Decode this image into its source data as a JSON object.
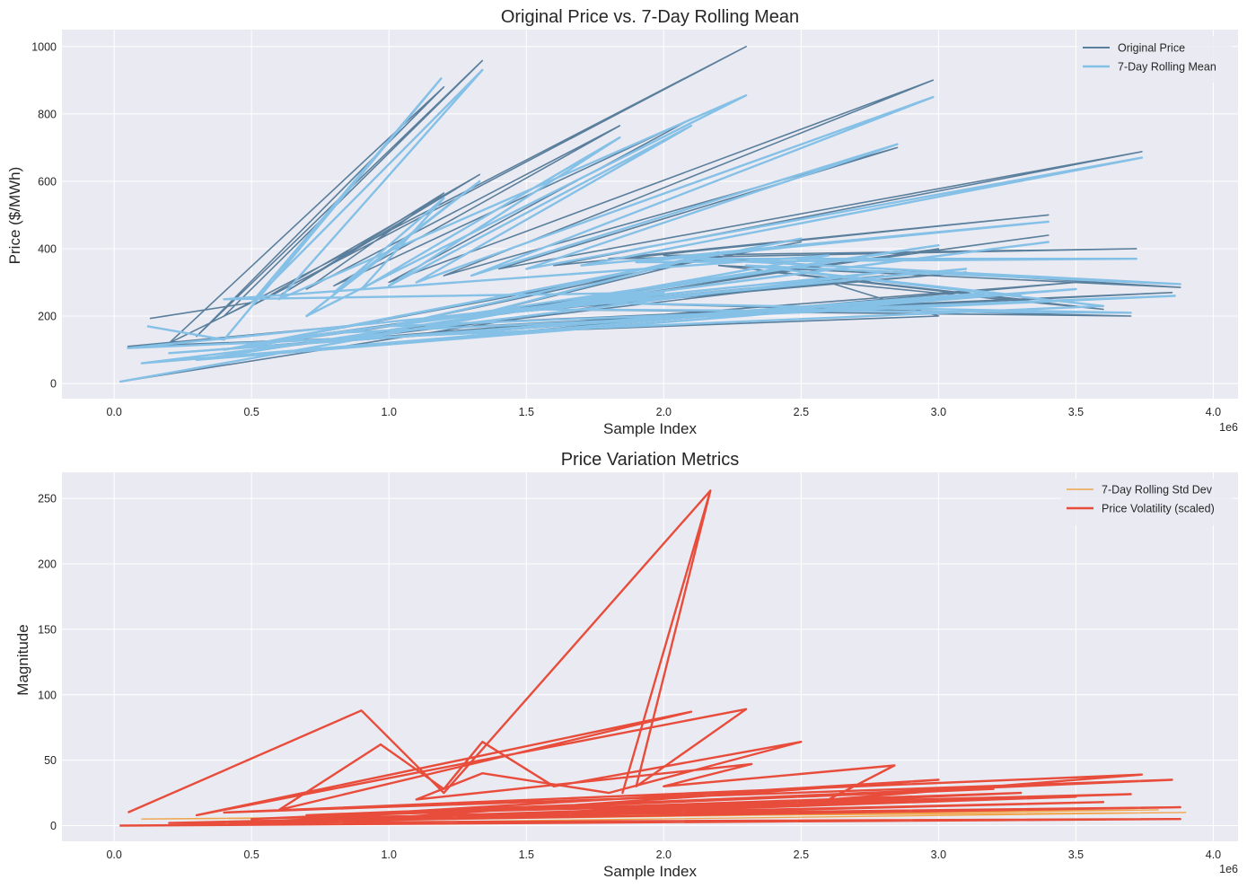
{
  "chart_data": [
    {
      "type": "line",
      "title": "Original Price vs. 7-Day Rolling Mean",
      "xlabel": "Sample Index",
      "ylabel": "Price ($/MWh)",
      "x_offset_label": "1e6",
      "xlim": [
        -0.19,
        4.09
      ],
      "ylim": [
        -45,
        1050
      ],
      "x_ticks": [
        0.0,
        0.5,
        1.0,
        1.5,
        2.0,
        2.5,
        3.0,
        3.5,
        4.0
      ],
      "x_tick_labels": [
        "0.0",
        "0.5",
        "1.0",
        "1.5",
        "2.0",
        "2.5",
        "3.0",
        "3.5",
        "4.0"
      ],
      "y_ticks": [
        0,
        200,
        400,
        600,
        800,
        1000
      ],
      "y_tick_labels": [
        "0",
        "200",
        "400",
        "600",
        "800",
        "1000"
      ],
      "grid": true,
      "legend": "top-right",
      "note": "x values are sample indices in millions (axis offset 1e6); samples are unsorted so the line zig-zags",
      "series": [
        {
          "name": "Original Price",
          "color": "#5a7f9c",
          "points": [
            [
              0.13,
              193
            ],
            [
              0.5,
              240
            ],
            [
              0.2,
              120
            ],
            [
              1.2,
              880
            ],
            [
              0.3,
              140
            ],
            [
              1.34,
              958
            ],
            [
              0.4,
              200
            ],
            [
              2.3,
              1000
            ],
            [
              0.5,
              230
            ],
            [
              1.33,
              620
            ],
            [
              0.6,
              260
            ],
            [
              1.2,
              565
            ],
            [
              0.7,
              280
            ],
            [
              1.84,
              765
            ],
            [
              0.8,
              290
            ],
            [
              2.1,
              785
            ],
            [
              1.0,
              300
            ],
            [
              2.98,
              900
            ],
            [
              1.2,
              320
            ],
            [
              2.85,
              700
            ],
            [
              1.4,
              340
            ],
            [
              3.74,
              688
            ],
            [
              1.6,
              350
            ],
            [
              3.4,
              500
            ],
            [
              1.8,
              370
            ],
            [
              3.72,
              400
            ],
            [
              2.0,
              380
            ],
            [
              3.88,
              285
            ],
            [
              2.2,
              350
            ],
            [
              3.3,
              250
            ],
            [
              2.4,
              330
            ],
            [
              3.6,
              220
            ],
            [
              2.6,
              300
            ],
            [
              3.0,
              200
            ],
            [
              0.05,
              110
            ],
            [
              2.8,
              320
            ],
            [
              0.1,
              60
            ],
            [
              3.2,
              260
            ],
            [
              0.2,
              90
            ],
            [
              3.5,
              300
            ],
            [
              0.3,
              70
            ],
            [
              3.0,
              400
            ],
            [
              0.4,
              100
            ],
            [
              2.5,
              420
            ],
            [
              0.6,
              130
            ],
            [
              3.4,
              440
            ],
            [
              0.8,
              150
            ],
            [
              3.85,
              270
            ],
            [
              1.0,
              170
            ],
            [
              2.2,
              380
            ],
            [
              1.3,
              200
            ],
            [
              3.1,
              330
            ],
            [
              1.5,
              220
            ],
            [
              3.7,
              200
            ],
            [
              1.7,
              240
            ],
            [
              2.0,
              260
            ],
            [
              0.02,
              5
            ]
          ]
        },
        {
          "name": "7-Day Rolling Mean",
          "color": "#85c0e6",
          "points": [
            [
              0.12,
              170
            ],
            [
              0.4,
              130
            ],
            [
              1.19,
              905
            ],
            [
              0.5,
              240
            ],
            [
              1.34,
              930
            ],
            [
              0.6,
              250
            ],
            [
              2.3,
              855
            ],
            [
              0.7,
              200
            ],
            [
              1.33,
              600
            ],
            [
              0.8,
              270
            ],
            [
              1.2,
              550
            ],
            [
              0.9,
              280
            ],
            [
              1.84,
              730
            ],
            [
              1.0,
              290
            ],
            [
              2.1,
              765
            ],
            [
              1.1,
              300
            ],
            [
              2.98,
              850
            ],
            [
              1.3,
              320
            ],
            [
              2.85,
              710
            ],
            [
              1.5,
              340
            ],
            [
              3.74,
              670
            ],
            [
              1.7,
              350
            ],
            [
              3.4,
              480
            ],
            [
              1.9,
              360
            ],
            [
              3.72,
              370
            ],
            [
              2.1,
              370
            ],
            [
              3.88,
              295
            ],
            [
              2.3,
              350
            ],
            [
              3.3,
              260
            ],
            [
              2.5,
              330
            ],
            [
              3.6,
              230
            ],
            [
              0.05,
              105
            ],
            [
              2.8,
              330
            ],
            [
              0.1,
              60
            ],
            [
              3.2,
              270
            ],
            [
              0.2,
              90
            ],
            [
              3.5,
              280
            ],
            [
              0.3,
              70
            ],
            [
              3.0,
              410
            ],
            [
              0.4,
              100
            ],
            [
              2.5,
              430
            ],
            [
              0.6,
              130
            ],
            [
              3.4,
              420
            ],
            [
              0.8,
              150
            ],
            [
              3.86,
              260
            ],
            [
              1.0,
              170
            ],
            [
              2.2,
              390
            ],
            [
              1.3,
              200
            ],
            [
              3.1,
              340
            ],
            [
              1.5,
              220
            ],
            [
              3.7,
              210
            ],
            [
              1.7,
              240
            ],
            [
              2.0,
              270
            ],
            [
              0.4,
              250
            ],
            [
              2.6,
              380
            ],
            [
              0.02,
              5
            ]
          ]
        }
      ]
    },
    {
      "type": "line",
      "title": "Price Variation Metrics",
      "xlabel": "Sample Index",
      "ylabel": "Magnitude",
      "x_offset_label": "1e6",
      "xlim": [
        -0.19,
        4.09
      ],
      "ylim": [
        -12,
        270
      ],
      "x_ticks": [
        0.0,
        0.5,
        1.0,
        1.5,
        2.0,
        2.5,
        3.0,
        3.5,
        4.0
      ],
      "x_tick_labels": [
        "0.0",
        "0.5",
        "1.0",
        "1.5",
        "2.0",
        "2.5",
        "3.0",
        "3.5",
        "4.0"
      ],
      "y_ticks": [
        0,
        50,
        100,
        150,
        200,
        250
      ],
      "y_tick_labels": [
        "0",
        "50",
        "100",
        "150",
        "200",
        "250"
      ],
      "grid": true,
      "legend": "top-right",
      "series": [
        {
          "name": "7-Day Rolling Std Dev",
          "color": "#f0a44a",
          "points": [
            [
              0.02,
              0
            ],
            [
              3.9,
              10
            ],
            [
              0.1,
              5
            ],
            [
              3.8,
              12
            ],
            [
              0.2,
              2
            ]
          ]
        },
        {
          "name": "Price Volatility (scaled)",
          "color": "#e84c3b",
          "points": [
            [
              0.05,
              10
            ],
            [
              0.9,
              88
            ],
            [
              1.2,
              25
            ],
            [
              2.17,
              256
            ],
            [
              1.85,
              25
            ],
            [
              2.17,
              256
            ],
            [
              1.9,
              30
            ],
            [
              2.3,
              89
            ],
            [
              0.3,
              8
            ],
            [
              2.1,
              87
            ],
            [
              0.6,
              12
            ],
            [
              0.97,
              62
            ],
            [
              1.2,
              28
            ],
            [
              1.34,
              64
            ],
            [
              1.6,
              30
            ],
            [
              2.5,
              64
            ],
            [
              1.8,
              25
            ],
            [
              1.34,
              40
            ],
            [
              1.1,
              20
            ],
            [
              2.32,
              47
            ],
            [
              2.0,
              30
            ],
            [
              2.84,
              46
            ],
            [
              2.6,
              20
            ],
            [
              3.74,
              39
            ],
            [
              0.4,
              10
            ],
            [
              3.85,
              35
            ],
            [
              0.5,
              5
            ],
            [
              3.2,
              28
            ],
            [
              0.7,
              8
            ],
            [
              3.5,
              22
            ],
            [
              0.8,
              3
            ],
            [
              3.0,
              35
            ],
            [
              1.0,
              10
            ],
            [
              3.7,
              24
            ],
            [
              0.3,
              2
            ],
            [
              3.88,
              14
            ],
            [
              0.6,
              6
            ],
            [
              3.3,
              25
            ],
            [
              1.5,
              9
            ],
            [
              2.7,
              20
            ],
            [
              0.9,
              4
            ],
            [
              3.6,
              18
            ],
            [
              0.2,
              2
            ],
            [
              3.88,
              5
            ],
            [
              0.02,
              0
            ]
          ]
        }
      ]
    }
  ]
}
